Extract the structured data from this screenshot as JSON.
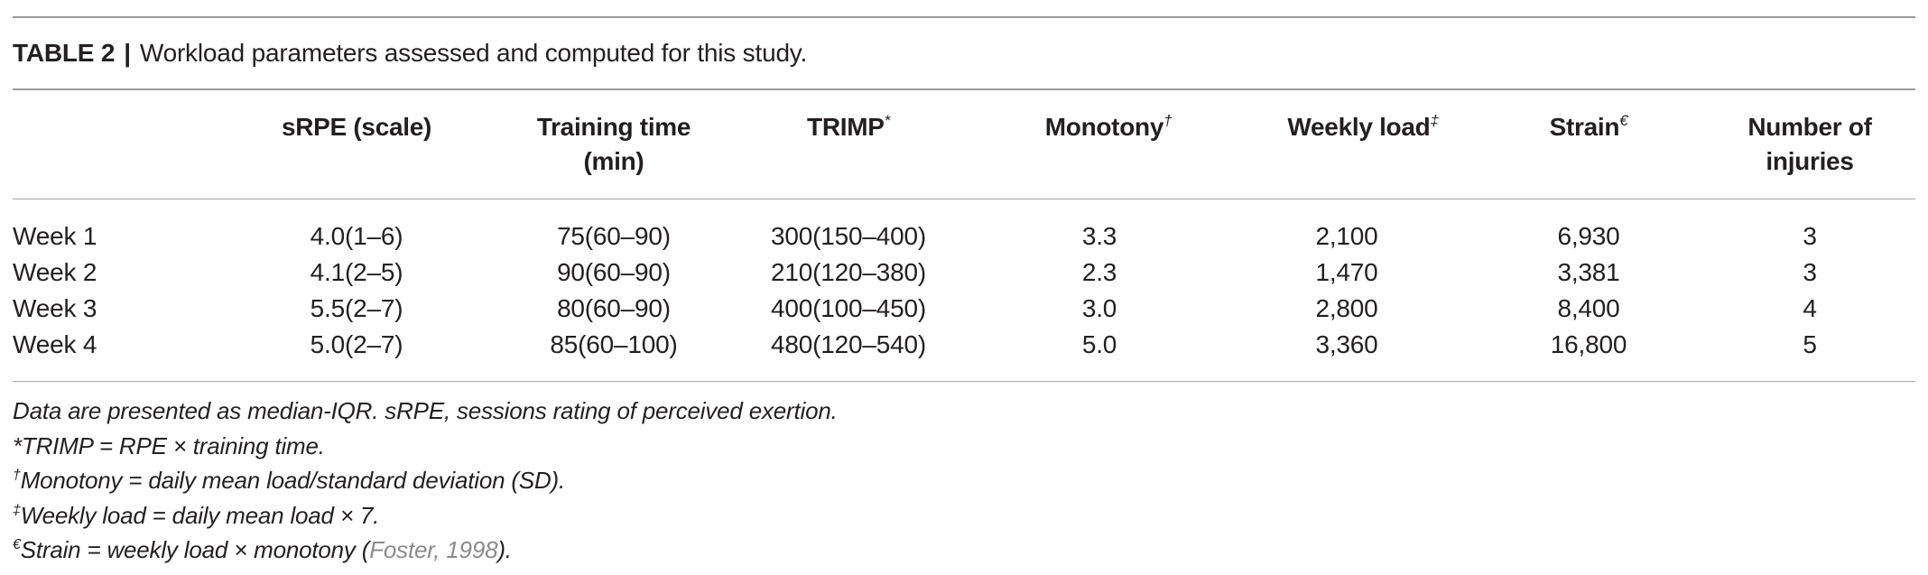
{
  "caption": {
    "label": "TABLE 2",
    "separator": "|",
    "text": "Workload parameters assessed and computed for this study."
  },
  "columns": [
    {
      "line1": "",
      "line2": "",
      "sup": ""
    },
    {
      "line1": "sRPE (scale)",
      "line2": "",
      "sup": ""
    },
    {
      "line1": "Training time",
      "line2": "(min)",
      "sup": ""
    },
    {
      "line1": "TRIMP",
      "line2": "",
      "sup": "*"
    },
    {
      "line1": "Monotony",
      "line2": "",
      "sup": "†"
    },
    {
      "line1": "Weekly load",
      "line2": "",
      "sup": "‡"
    },
    {
      "line1": "Strain",
      "line2": "",
      "sup": "€"
    },
    {
      "line1": "Number of",
      "line2": "injuries",
      "sup": ""
    }
  ],
  "rows": [
    [
      "Week 1",
      "4.0(1–6)",
      "75(60–90)",
      "300(150–400)",
      "3.3",
      "2,100",
      "6,930",
      "3"
    ],
    [
      "Week 2",
      "4.1(2–5)",
      "90(60–90)",
      "210(120–380)",
      "2.3",
      "1,470",
      "3,381",
      "3"
    ],
    [
      "Week 3",
      "5.5(2–7)",
      "80(60–90)",
      "400(100–450)",
      "3.0",
      "2,800",
      "8,400",
      "4"
    ],
    [
      "Week 4",
      "5.0(2–7)",
      "85(60–100)",
      "480(120–540)",
      "5.0",
      "3,360",
      "16,800",
      "5"
    ]
  ],
  "notes": {
    "n1": {
      "sup": "",
      "text": "Data are presented as median-IQR. sRPE, sessions rating of perceived exertion."
    },
    "n2": {
      "sup": "*",
      "text": "TRIMP = RPE × training time."
    },
    "n3": {
      "sup": "†",
      "text": "Monotony = daily mean load/standard deviation (SD)."
    },
    "n4": {
      "sup": "‡",
      "text": "Weekly load = daily mean load × 7."
    },
    "n5": {
      "sup": "€",
      "text": "Strain = weekly load × monotony (",
      "ref": "Foster, 1998",
      "after": ")."
    }
  }
}
